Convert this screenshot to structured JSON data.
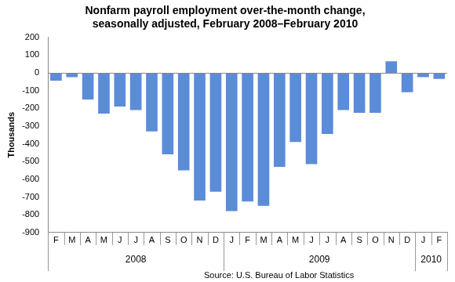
{
  "chart_data": {
    "type": "bar",
    "title": [
      "Nonfarm payroll employment over-the-month change,",
      "seasonally adjusted, February 2008–February 2010"
    ],
    "y_label": "Thousands",
    "source": "Source: U.S. Bureau of Labor Statistics",
    "categories": [
      "F",
      "M",
      "A",
      "M",
      "J",
      "J",
      "A",
      "S",
      "O",
      "N",
      "D",
      "J",
      "F",
      "M",
      "A",
      "M",
      "J",
      "J",
      "A",
      "S",
      "O",
      "N",
      "D",
      "J",
      "F"
    ],
    "groups": [
      "2008",
      "2009",
      "2010"
    ],
    "values": [
      -45,
      -25,
      -150,
      -230,
      -190,
      -210,
      -330,
      -460,
      -550,
      -720,
      -670,
      -780,
      -725,
      -750,
      -530,
      -390,
      -515,
      -345,
      -210,
      -225,
      -225,
      65,
      -110,
      -25,
      -35
    ],
    "color": "#5b8cd8",
    "ylim": [
      -900,
      200
    ],
    "yticks": [
      -900,
      -800,
      -700,
      -600,
      -500,
      -400,
      -300,
      -200,
      -100,
      0,
      100,
      200
    ],
    "grid": false
  }
}
